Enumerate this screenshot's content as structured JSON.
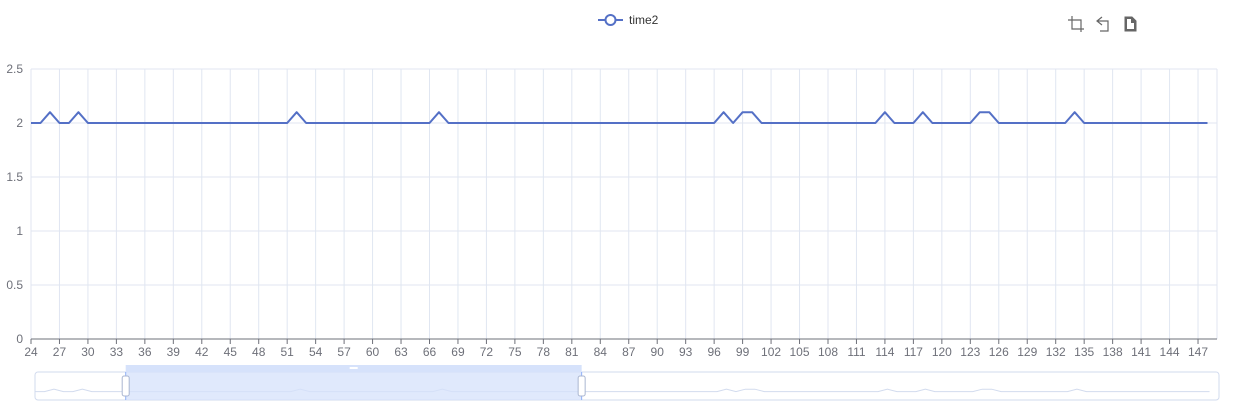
{
  "chart_data": {
    "type": "line",
    "legend": {
      "position": "top-center"
    },
    "series": [
      {
        "name": "time2",
        "color": "#5470c6",
        "points": [
          [
            24,
            2
          ],
          [
            25,
            2
          ],
          [
            26,
            2.1
          ],
          [
            27,
            2
          ],
          [
            28,
            2
          ],
          [
            29,
            2.1
          ],
          [
            30,
            2
          ],
          [
            51,
            2
          ],
          [
            52,
            2.1
          ],
          [
            53,
            2
          ],
          [
            66,
            2
          ],
          [
            67,
            2.1
          ],
          [
            68,
            2
          ],
          [
            96,
            2
          ],
          [
            97,
            2.1
          ],
          [
            98,
            2
          ],
          [
            99,
            2.1
          ],
          [
            100,
            2.1
          ],
          [
            101,
            2
          ],
          [
            113,
            2
          ],
          [
            114,
            2.1
          ],
          [
            115,
            2
          ],
          [
            117,
            2
          ],
          [
            118,
            2.1
          ],
          [
            119,
            2
          ],
          [
            123,
            2
          ],
          [
            124,
            2.1
          ],
          [
            125,
            2.1
          ],
          [
            126,
            2
          ],
          [
            133,
            2
          ],
          [
            134,
            2.1
          ],
          [
            135,
            2
          ],
          [
            148,
            2
          ]
        ]
      }
    ],
    "x_axis": {
      "type": "category",
      "range": [
        24,
        149
      ],
      "tick_labels": [
        "24",
        "27",
        "30",
        "33",
        "36",
        "39",
        "42",
        "45",
        "48",
        "51",
        "54",
        "57",
        "60",
        "63",
        "66",
        "69",
        "72",
        "75",
        "78",
        "81",
        "84",
        "87",
        "90",
        "93",
        "96",
        "99",
        "102",
        "105",
        "108",
        "111",
        "114",
        "117",
        "120",
        "123",
        "126",
        "129",
        "132",
        "135",
        "138",
        "141",
        "144",
        "147"
      ]
    },
    "y_axis": {
      "range": [
        0,
        2.5
      ],
      "tick_labels": [
        "0",
        "0.5",
        "1",
        "1.5",
        "2",
        "2.5"
      ]
    },
    "grid": {
      "horizontal": true,
      "vertical": true
    },
    "data_zoom": {
      "start_fraction": 0.0766,
      "end_fraction": 0.4617
    }
  },
  "toolbox": {
    "icons": [
      "data-zoom-icon",
      "restore-icon",
      "save-image-icon"
    ]
  }
}
